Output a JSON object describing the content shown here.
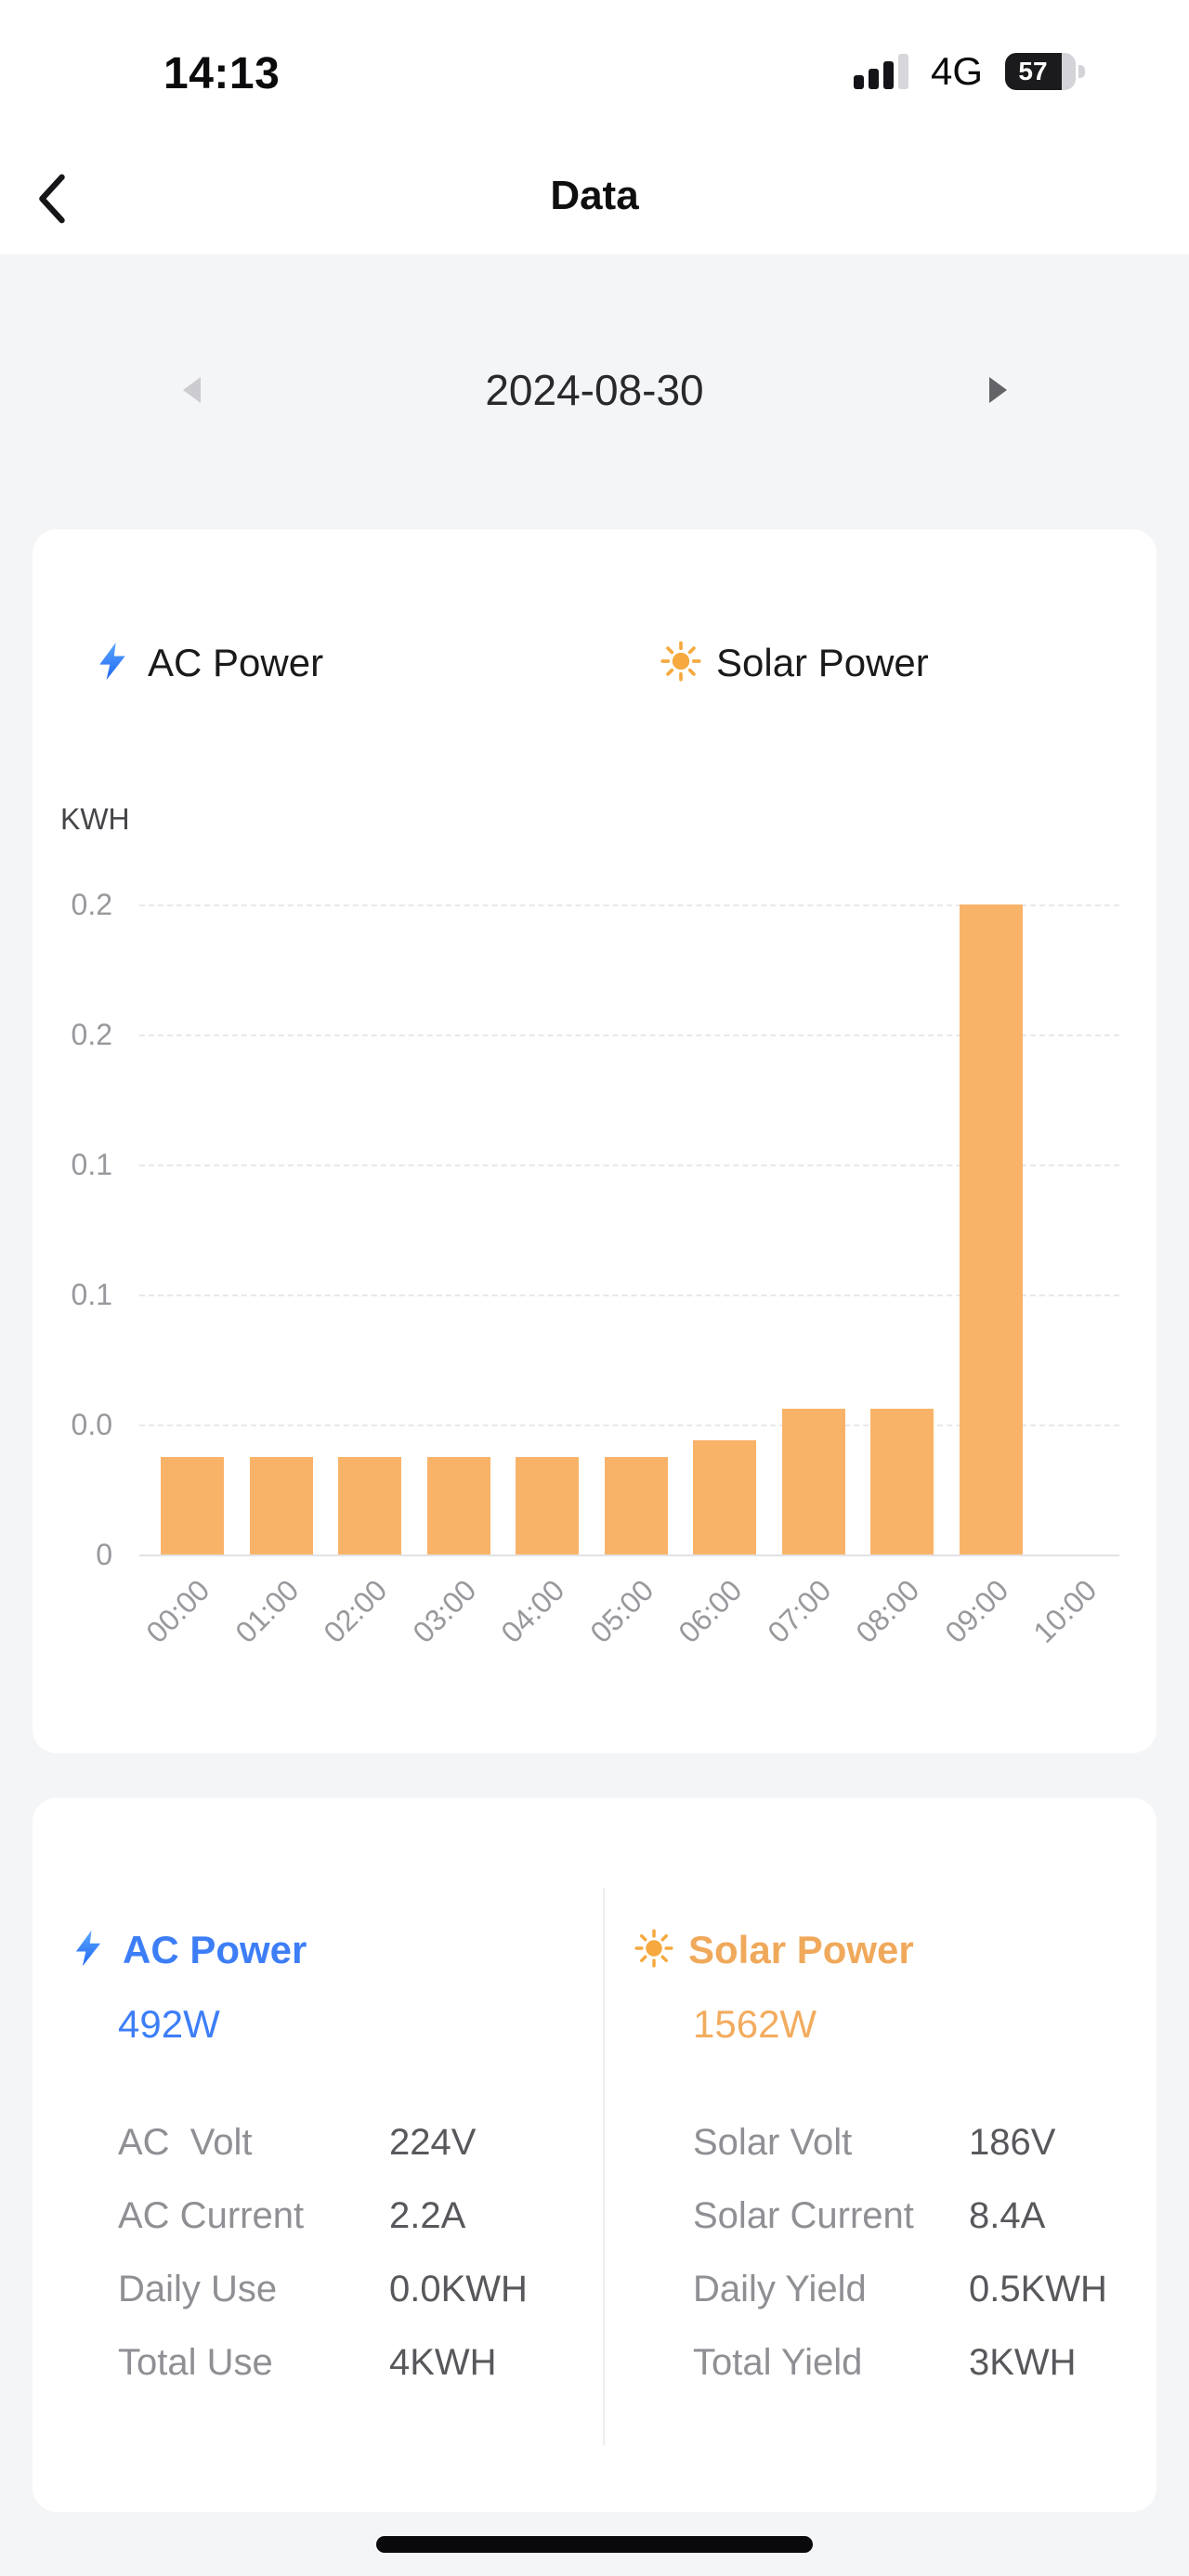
{
  "status_bar": {
    "time": "14:13",
    "network": "4G",
    "battery_percent": "57"
  },
  "header": {
    "title": "Data"
  },
  "date_nav": {
    "date": "2024-08-30"
  },
  "chart_card": {
    "legend": [
      {
        "label": "AC Power",
        "icon": "lightning-icon",
        "color": "#2e7cf6"
      },
      {
        "label": "Solar Power",
        "icon": "sun-icon",
        "color": "#f5a93f"
      }
    ]
  },
  "chart_data": {
    "type": "bar",
    "title": "",
    "ylabel": "KWH",
    "xlabel": "",
    "categories": [
      "00:00",
      "01:00",
      "02:00",
      "03:00",
      "04:00",
      "05:00",
      "06:00",
      "07:00",
      "08:00",
      "09:00",
      "10:00"
    ],
    "values": [
      0.03,
      0.03,
      0.03,
      0.03,
      0.03,
      0.03,
      0.035,
      0.045,
      0.045,
      0.2,
      0
    ],
    "y_tick_labels": [
      "0.2",
      "0.2",
      "0.1",
      "0.1",
      "0.0",
      "0"
    ],
    "ylim": [
      0,
      0.2
    ],
    "grid": "horizontal-dashed",
    "legend_position": "top",
    "bar_color": "#f9b369"
  },
  "info_card": {
    "ac": {
      "title": "AC Power",
      "power": "492W",
      "color": "#3d7ef7",
      "rows": [
        {
          "label": "AC  Volt",
          "value": "224V"
        },
        {
          "label": "AC Current",
          "value": "2.2A"
        },
        {
          "label": "Daily Use",
          "value": "0.0KWH"
        },
        {
          "label": "Total Use",
          "value": "4KWH"
        }
      ]
    },
    "solar": {
      "title": "Solar Power",
      "power": "1562W",
      "color": "#f2ac5e",
      "rows": [
        {
          "label": "Solar Volt",
          "value": "186V"
        },
        {
          "label": "Solar Current",
          "value": "8.4A"
        },
        {
          "label": "Daily Yield",
          "value": "0.5KWH"
        },
        {
          "label": "Total Yield",
          "value": "3KWH"
        }
      ]
    }
  }
}
